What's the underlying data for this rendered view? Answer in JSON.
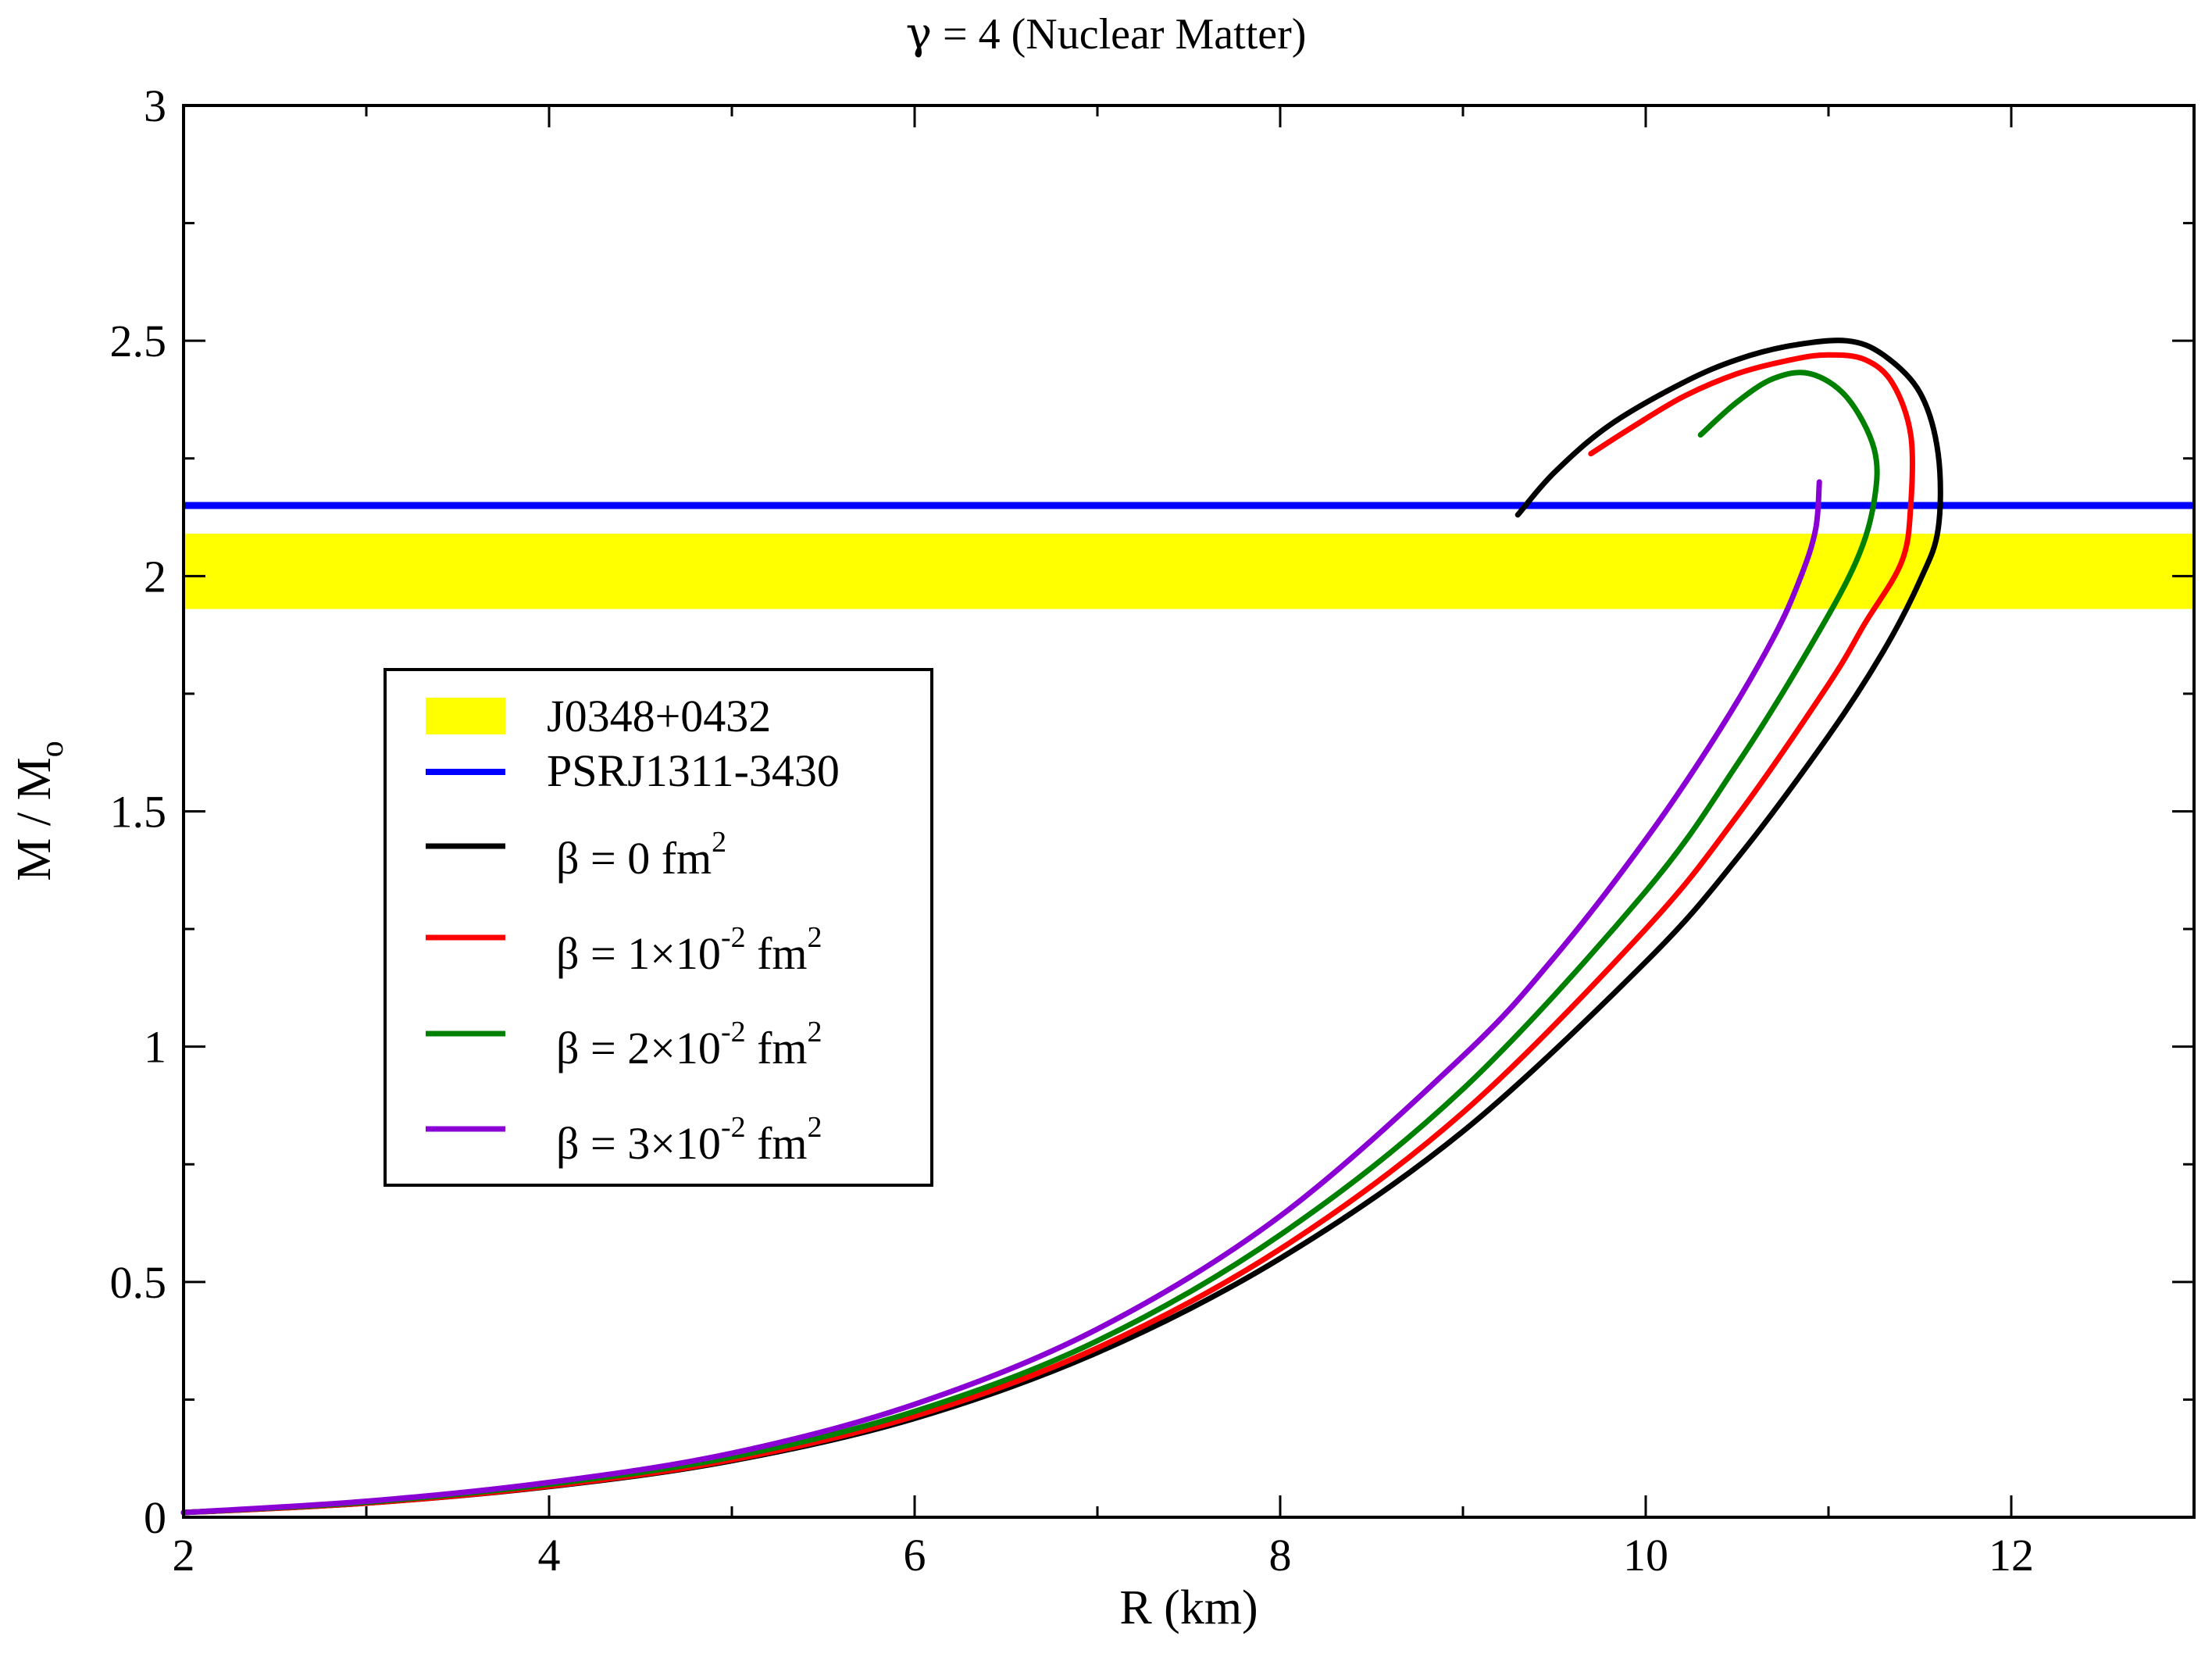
{
  "chart_data": {
    "type": "line",
    "title": {
      "gamma": "γ",
      "rest": " = 4 (Nuclear Matter)"
    },
    "xlabel": "R  (km)",
    "ylabel": {
      "main": "M / M",
      "sub": "o"
    },
    "xlim": [
      2,
      13
    ],
    "ylim": [
      0,
      3
    ],
    "xticks": [
      2,
      4,
      6,
      8,
      10,
      12
    ],
    "yticks": [
      0,
      0.5,
      1,
      1.5,
      2,
      2.5,
      3
    ],
    "xtick_labels": [
      "2",
      "4",
      "6",
      "8",
      "10",
      "12"
    ],
    "ytick_labels": [
      "0",
      "0.5",
      "1",
      "1.5",
      "2",
      "2.5",
      "3"
    ],
    "band": {
      "name": "J0348+0432",
      "color": "#ffff00",
      "ymin": 1.93,
      "ymax": 2.09
    },
    "hline": {
      "name": "PSRJ1311-3430",
      "color": "#0000ff",
      "y": 2.15
    },
    "series": [
      {
        "legend": {
          "pre": "β = 0 fm",
          "sup": "2",
          "mid": "",
          "sup2": ""
        },
        "name": "beta=0",
        "color": "#000000",
        "x": [
          2.0,
          3.0,
          4.0,
          5.0,
          6.0,
          7.0,
          8.0,
          9.0,
          10.0,
          10.5,
          11.0,
          11.3,
          11.5,
          11.6,
          11.6,
          11.5,
          11.3,
          11.1,
          10.8,
          10.5,
          10.2,
          9.8,
          9.5,
          9.3
        ],
        "y": [
          0.01,
          0.03,
          0.065,
          0.12,
          0.21,
          0.35,
          0.55,
          0.82,
          1.18,
          1.4,
          1.66,
          1.84,
          1.99,
          2.1,
          2.26,
          2.39,
          2.47,
          2.5,
          2.49,
          2.46,
          2.41,
          2.32,
          2.22,
          2.13
        ]
      },
      {
        "legend": {
          "pre": "β = 1×10",
          "sup": "-2",
          "mid": " fm",
          "sup2": "2"
        },
        "name": "beta=1e-2",
        "color": "#ff0000",
        "x": [
          2.0,
          3.0,
          4.0,
          5.0,
          6.0,
          7.0,
          8.0,
          9.0,
          10.0,
          10.5,
          11.0,
          11.2,
          11.4,
          11.45,
          11.45,
          11.35,
          11.2,
          11.0,
          10.8,
          10.5,
          10.2,
          9.9,
          9.7
        ],
        "y": [
          0.01,
          0.03,
          0.066,
          0.122,
          0.215,
          0.36,
          0.57,
          0.86,
          1.25,
          1.49,
          1.77,
          1.9,
          2.03,
          2.15,
          2.3,
          2.41,
          2.46,
          2.47,
          2.46,
          2.43,
          2.38,
          2.31,
          2.26
        ]
      },
      {
        "legend": {
          "pre": "β = 2×10",
          "sup": "-2",
          "mid": " fm",
          "sup2": "2"
        },
        "name": "beta=2e-2",
        "color": "#008000",
        "x": [
          2.0,
          3.0,
          4.0,
          5.0,
          6.0,
          7.0,
          8.0,
          9.0,
          10.0,
          10.5,
          10.9,
          11.15,
          11.25,
          11.25,
          11.1,
          10.9,
          10.7,
          10.5,
          10.3
        ],
        "y": [
          0.01,
          0.032,
          0.07,
          0.128,
          0.225,
          0.375,
          0.6,
          0.91,
          1.33,
          1.6,
          1.85,
          2.03,
          2.16,
          2.27,
          2.38,
          2.43,
          2.42,
          2.37,
          2.3
        ]
      },
      {
        "legend": {
          "pre": "β = 3×10",
          "sup": "-2",
          "mid": " fm",
          "sup2": "2"
        },
        "name": "beta=3e-2",
        "color": "#8a00d4",
        "x": [
          2.0,
          3.0,
          4.0,
          5.0,
          6.0,
          7.0,
          8.0,
          9.0,
          9.5,
          10.0,
          10.4,
          10.7,
          10.85,
          10.93,
          10.95
        ],
        "y": [
          0.01,
          0.034,
          0.074,
          0.136,
          0.24,
          0.4,
          0.64,
          0.98,
          1.19,
          1.44,
          1.67,
          1.87,
          2.0,
          2.1,
          2.2
        ]
      }
    ]
  }
}
